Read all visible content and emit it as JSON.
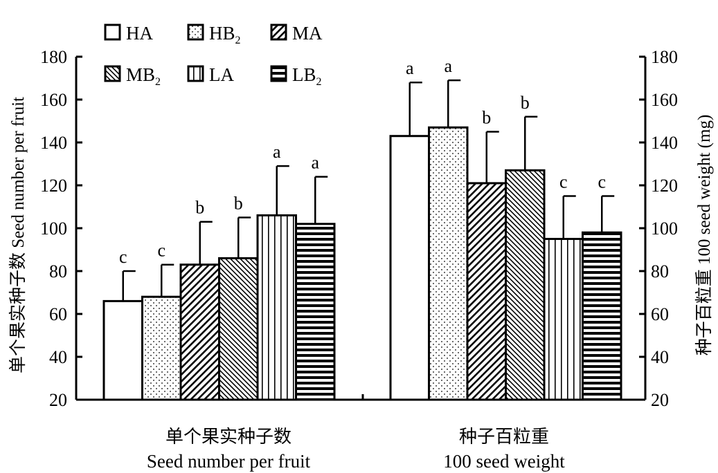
{
  "chart_data": {
    "type": "bar",
    "categories": [
      "单个果实种子数 Seed number per fruit",
      "种子百粒重 100 seed weight"
    ],
    "category_labels": [
      {
        "zh": "单个果实种子数",
        "en": "Seed number per fruit"
      },
      {
        "zh": "种子百粒重",
        "en": "100 seed weight"
      }
    ],
    "series": [
      {
        "name": "HA",
        "sub": "",
        "pattern": "none",
        "values": [
          66,
          143
        ],
        "errors": [
          80,
          168
        ],
        "letters": [
          "c",
          "a"
        ]
      },
      {
        "name": "HB",
        "sub": "2",
        "pattern": "dots",
        "values": [
          68,
          147
        ],
        "errors": [
          83,
          169
        ],
        "letters": [
          "c",
          "a"
        ]
      },
      {
        "name": "MA",
        "sub": "",
        "pattern": "diag",
        "values": [
          83,
          121
        ],
        "errors": [
          103,
          145
        ],
        "letters": [
          "b",
          "b"
        ]
      },
      {
        "name": "MB",
        "sub": "2",
        "pattern": "diag2",
        "values": [
          86,
          127
        ],
        "errors": [
          105,
          152
        ],
        "letters": [
          "b",
          "b"
        ]
      },
      {
        "name": "LA",
        "sub": "",
        "pattern": "vert",
        "values": [
          106,
          95
        ],
        "errors": [
          129,
          115
        ],
        "letters": [
          "a",
          "c"
        ]
      },
      {
        "name": "LB",
        "sub": "2",
        "pattern": "horiz",
        "values": [
          102,
          98
        ],
        "errors": [
          124,
          115
        ],
        "letters": [
          "a",
          "c"
        ]
      }
    ],
    "ylabel_left": "单个果实种子数 Seed number per fruit",
    "ylabel_right": "种子百粒重 100 seed weight (mg)",
    "ylim": [
      20,
      180
    ],
    "yticks": [
      20,
      40,
      60,
      80,
      100,
      120,
      140,
      160,
      180
    ],
    "legend": "top-left inside",
    "grid": false
  }
}
